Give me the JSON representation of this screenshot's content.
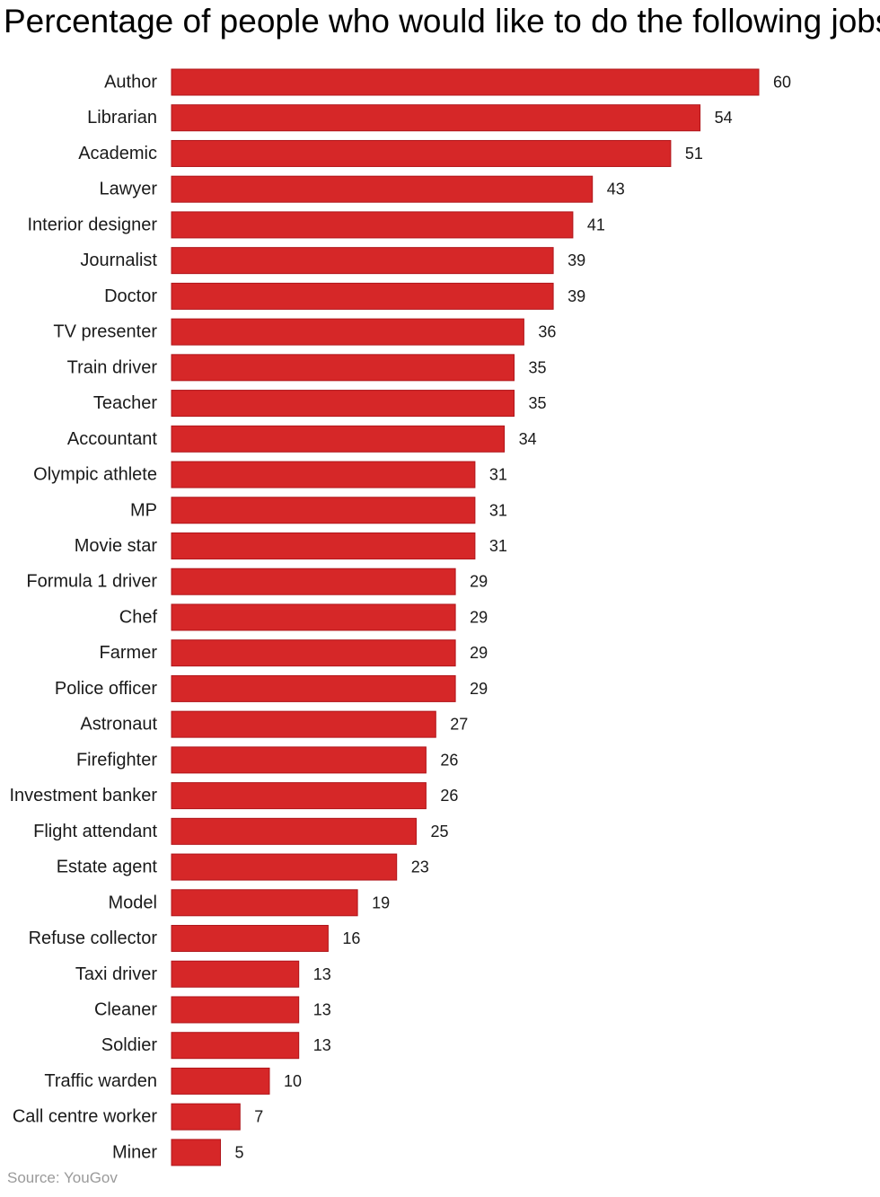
{
  "title": "Percentage of people who would like to do the following jobs:",
  "source": "Source: YouGov",
  "colors": {
    "bar_fill": "#d62728",
    "bar_stroke": "#b0151a",
    "text": "#1a1a1a",
    "source_text": "#9a9a9a"
  },
  "chart_data": {
    "type": "bar",
    "orientation": "horizontal",
    "categories": [
      "Author",
      "Librarian",
      "Academic",
      "Lawyer",
      "Interior designer",
      "Journalist",
      "Doctor",
      "TV presenter",
      "Train driver",
      "Teacher",
      "Accountant",
      "Olympic athlete",
      "MP",
      "Movie star",
      "Formula 1 driver",
      "Chef",
      "Farmer",
      "Police officer",
      "Astronaut",
      "Firefighter",
      "Investment banker",
      "Flight attendant",
      "Estate agent",
      "Model",
      "Refuse collector",
      "Taxi driver",
      "Cleaner",
      "Soldier",
      "Traffic warden",
      "Call centre worker",
      "Miner"
    ],
    "values": [
      60,
      54,
      51,
      43,
      41,
      39,
      39,
      36,
      35,
      35,
      34,
      31,
      31,
      31,
      29,
      29,
      29,
      29,
      27,
      26,
      26,
      25,
      23,
      19,
      16,
      13,
      13,
      13,
      10,
      7,
      5
    ],
    "xlim": [
      0,
      60
    ],
    "data_labels": true,
    "grid": false,
    "legend": "none"
  }
}
